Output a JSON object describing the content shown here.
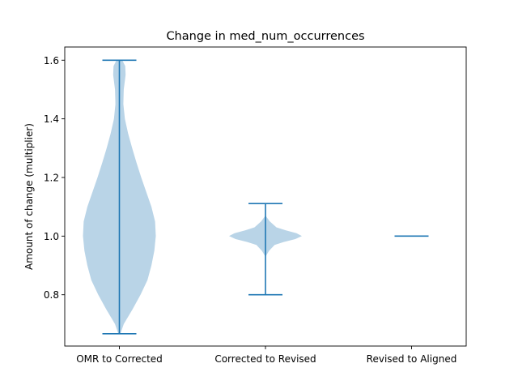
{
  "chart_data": {
    "type": "violin",
    "title": "Change in med_num_occurrences",
    "xlabel": "",
    "ylabel": "Amount of change (multiplier)",
    "categories": [
      "OMR to Corrected",
      "Corrected to Revised",
      "Revised to Aligned"
    ],
    "ylim": [
      0.625,
      1.645
    ],
    "yticks": [
      0.8,
      1.0,
      1.2,
      1.4,
      1.6
    ],
    "ytick_labels": [
      "0.8",
      "1.0",
      "1.2",
      "1.4",
      "1.6"
    ],
    "grid": false,
    "legend": "none",
    "colors": {
      "body": "#b9d4e7",
      "line": "#1f77b4"
    },
    "violins": [
      {
        "name": "OMR to Corrected",
        "min": 0.667,
        "max": 1.6,
        "profile": [
          [
            0.667,
            0.03
          ],
          [
            0.7,
            0.12
          ],
          [
            0.75,
            0.36
          ],
          [
            0.8,
            0.58
          ],
          [
            0.85,
            0.77
          ],
          [
            0.9,
            0.88
          ],
          [
            0.95,
            0.96
          ],
          [
            1.0,
            1.0
          ],
          [
            1.05,
            0.98
          ],
          [
            1.1,
            0.88
          ],
          [
            1.15,
            0.74
          ],
          [
            1.2,
            0.6
          ],
          [
            1.25,
            0.47
          ],
          [
            1.3,
            0.35
          ],
          [
            1.35,
            0.24
          ],
          [
            1.4,
            0.15
          ],
          [
            1.45,
            0.11
          ],
          [
            1.5,
            0.12
          ],
          [
            1.55,
            0.17
          ],
          [
            1.58,
            0.16
          ],
          [
            1.6,
            0.08
          ]
        ]
      },
      {
        "name": "Corrected to Revised",
        "min": 0.8,
        "max": 1.111,
        "profile": [
          [
            0.93,
            0.0
          ],
          [
            0.95,
            0.1
          ],
          [
            0.97,
            0.25
          ],
          [
            0.98,
            0.5
          ],
          [
            0.99,
            0.82
          ],
          [
            1.0,
            1.0
          ],
          [
            1.01,
            0.85
          ],
          [
            1.02,
            0.55
          ],
          [
            1.03,
            0.3
          ],
          [
            1.05,
            0.12
          ],
          [
            1.07,
            0.0
          ]
        ]
      },
      {
        "name": "Revised to Aligned",
        "min": 1.0,
        "max": 1.0,
        "profile": []
      }
    ]
  }
}
